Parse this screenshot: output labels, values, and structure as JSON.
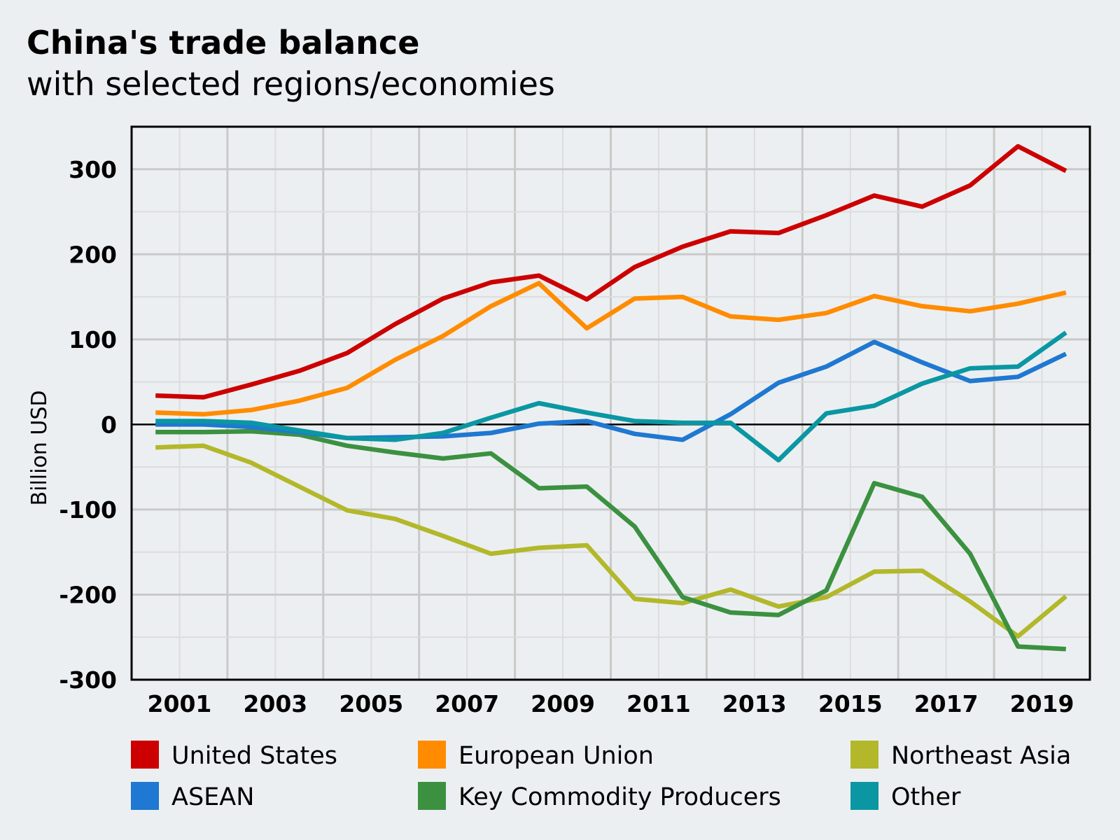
{
  "chart_data": {
    "type": "line",
    "title": "China's trade balance",
    "subtitle": "with selected regions/economies",
    "xlabel": "",
    "ylabel": "Billion USD",
    "x": [
      2000.5,
      2001.5,
      2002.5,
      2003.5,
      2004.5,
      2005.5,
      2006.5,
      2007.5,
      2008.5,
      2009.5,
      2010.5,
      2011.5,
      2012.5,
      2013.5,
      2014.5,
      2015.5,
      2016.5,
      2017.5,
      2018.5,
      2019.5
    ],
    "xlim": [
      2000,
      2020
    ],
    "ylim": [
      -300,
      350
    ],
    "x_ticks": [
      2001,
      2003,
      2005,
      2007,
      2009,
      2011,
      2013,
      2015,
      2017,
      2019
    ],
    "x_tick_labels": [
      "2001",
      "2003",
      "2005",
      "2007",
      "2009",
      "2011",
      "2013",
      "2015",
      "2017",
      "2019"
    ],
    "y_ticks": [
      -300,
      -200,
      -100,
      0,
      100,
      200,
      300
    ],
    "y_tick_labels": [
      "-300",
      "-200",
      "-100",
      "0",
      "100",
      "200",
      "300"
    ],
    "grid": true,
    "zero_line": true,
    "legend_position": "bottom",
    "series": [
      {
        "name": "United States",
        "color": "#cc0000",
        "values": [
          34,
          32,
          47,
          63,
          84,
          118,
          148,
          167,
          175,
          147,
          185,
          209,
          227,
          225,
          246,
          269,
          256,
          281,
          327,
          298
        ]
      },
      {
        "name": "European Union",
        "color": "#ff8c00",
        "values": [
          14,
          12,
          17,
          28,
          43,
          76,
          104,
          139,
          166,
          113,
          148,
          150,
          127,
          123,
          131,
          151,
          139,
          133,
          142,
          155
        ]
      },
      {
        "name": "Northeast Asia",
        "color": "#b2b82a",
        "values": [
          -27,
          -25,
          -45,
          -73,
          -101,
          -111,
          -131,
          -152,
          -145,
          -142,
          -205,
          -210,
          -194,
          -214,
          -203,
          -173,
          -172,
          -208,
          -249,
          -202
        ]
      },
      {
        "name": "ASEAN",
        "color": "#1f78d1",
        "values": [
          0,
          0,
          -3,
          -9,
          -16,
          -15,
          -14,
          -10,
          1,
          4,
          -11,
          -18,
          12,
          49,
          68,
          97,
          73,
          51,
          56,
          83
        ]
      },
      {
        "name": "Key Commodity Producers",
        "color": "#3b9140",
        "values": [
          -9,
          -9,
          -8,
          -12,
          -25,
          -33,
          -40,
          -34,
          -75,
          -73,
          -120,
          -203,
          -221,
          -224,
          -195,
          -69,
          -85,
          -152,
          -261,
          -264
        ]
      },
      {
        "name": "Other",
        "color": "#0a97a3",
        "values": [
          4,
          4,
          2,
          -7,
          -16,
          -18,
          -10,
          8,
          25,
          14,
          4,
          2,
          2,
          -42,
          13,
          22,
          48,
          66,
          68,
          108
        ]
      }
    ]
  }
}
